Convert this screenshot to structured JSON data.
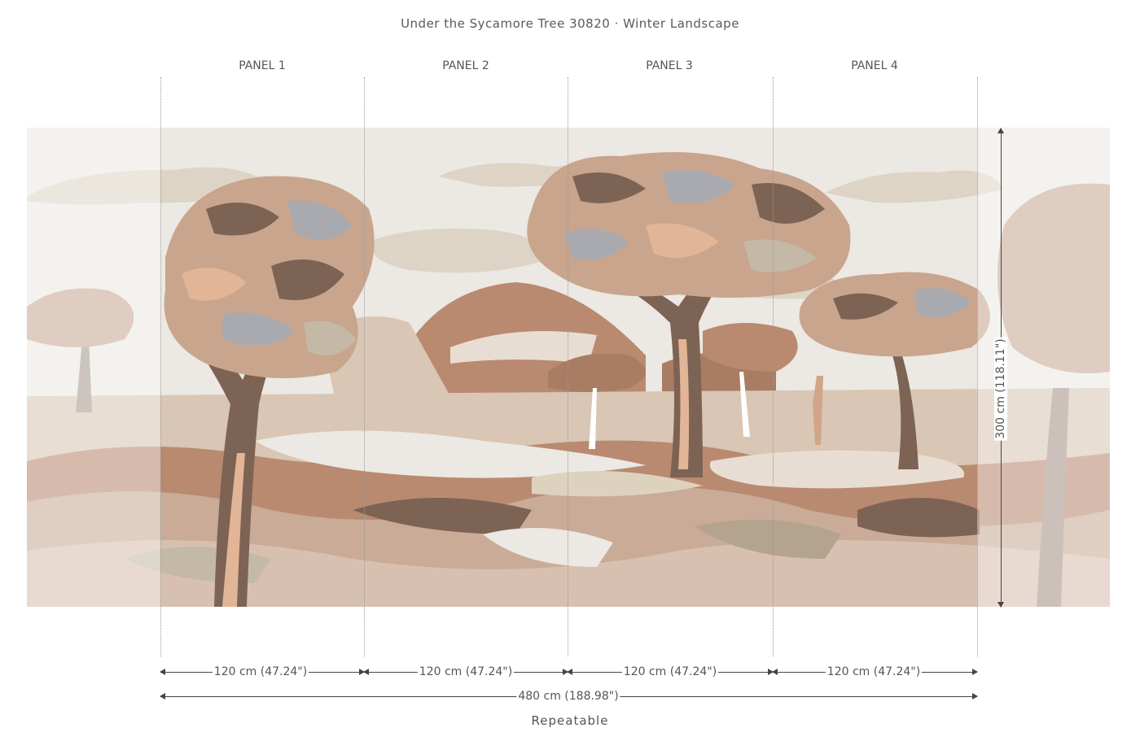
{
  "title": "Under the Sycamore Tree 30820 · Winter Landscape",
  "panels": [
    {
      "label": "PANEL 1",
      "width": "120 cm (47.24\")"
    },
    {
      "label": "PANEL 2",
      "width": "120 cm (47.24\")"
    },
    {
      "label": "PANEL 3",
      "width": "120 cm (47.24\")"
    },
    {
      "label": "PANEL 4",
      "width": "120 cm (47.24\")"
    }
  ],
  "total_width": "480 cm (188.98\")",
  "height": "300 cm (118.11\")",
  "repeat_label": "Repeatable",
  "colors": {
    "sky": "#ece8e3",
    "dark_brown": "#7d6354",
    "terracotta": "#b98a70",
    "sand": "#d9c6b4",
    "peach": "#e2b596",
    "grey_blue": "#a9aab0",
    "sage": "#c3b9a6"
  }
}
